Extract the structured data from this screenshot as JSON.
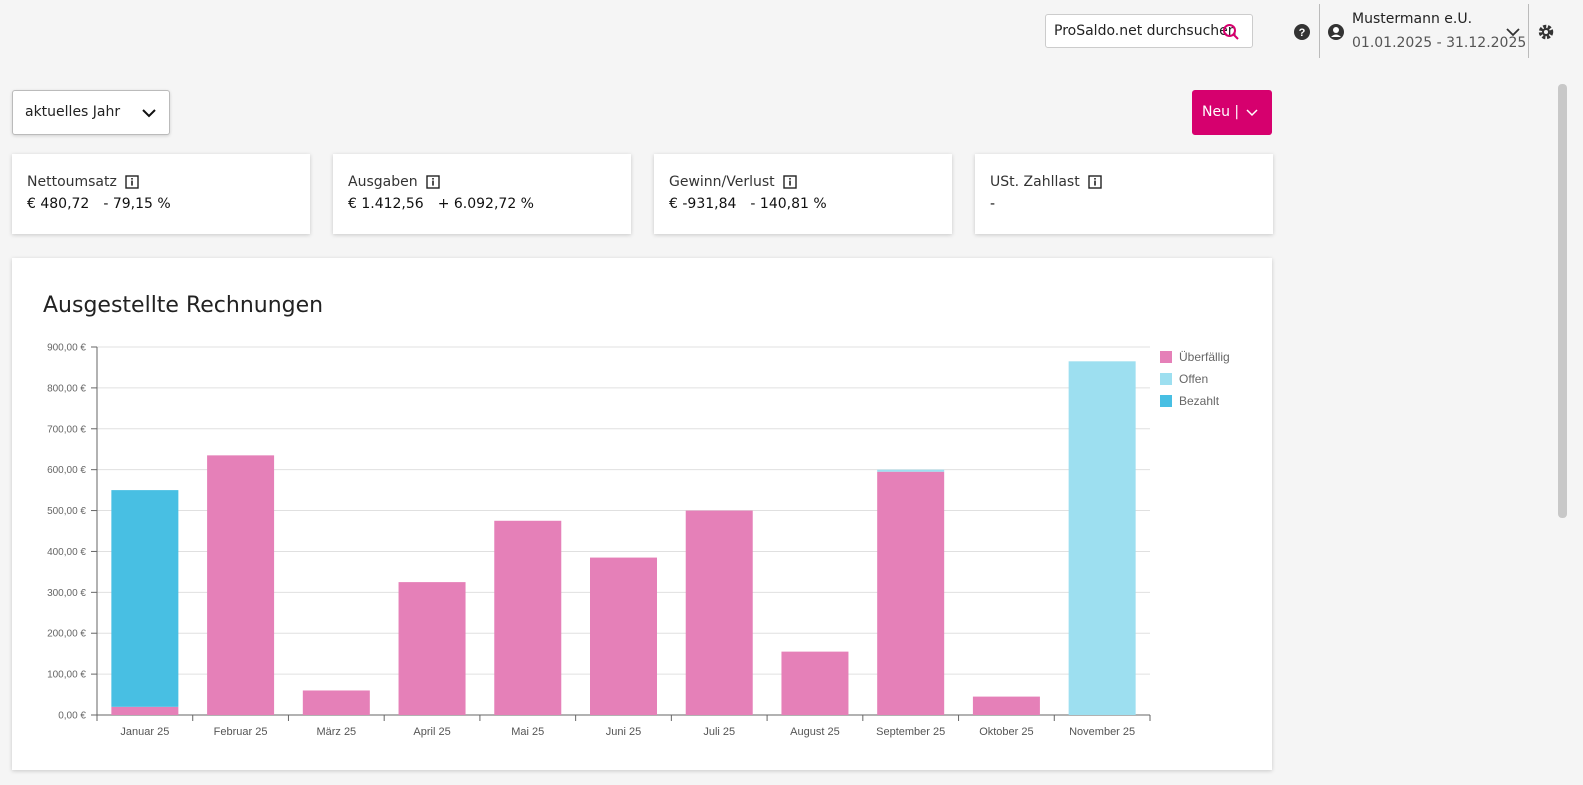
{
  "header": {
    "search_placeholder": "ProSaldo.net durchsuchen",
    "user_name": "Mustermann e.U.",
    "period": "01.01.2025 - 31.12.2025"
  },
  "controls": {
    "period_select": "aktuelles Jahr",
    "new_button": "Neu |"
  },
  "cards": [
    {
      "label": "Nettoumsatz",
      "value": "€ 480,72",
      "change": "- 79,15 %"
    },
    {
      "label": "Ausgaben",
      "value": "€ 1.412,56",
      "change": "+ 6.092,72 %"
    },
    {
      "label": "Gewinn/Verlust",
      "value": "€ -931,84",
      "change": "- 140,81 %"
    },
    {
      "label": "USt. Zahllast",
      "value": "-"
    }
  ],
  "chart_data": {
    "type": "bar",
    "stacked": true,
    "title": "Ausgestellte Rechnungen",
    "categories": [
      "Januar 25",
      "Februar 25",
      "März 25",
      "April 25",
      "Mai 25",
      "Juni 25",
      "Juli 25",
      "August 25",
      "September 25",
      "Oktober 25",
      "November 25"
    ],
    "series": [
      {
        "name": "Überfällig",
        "color": "#e580b8",
        "values": [
          20,
          635,
          60,
          325,
          475,
          385,
          500,
          155,
          595,
          45,
          0
        ]
      },
      {
        "name": "Offen",
        "color": "#9ddff0",
        "values": [
          0,
          0,
          0,
          0,
          0,
          0,
          0,
          0,
          5,
          0,
          865
        ]
      },
      {
        "name": "Bezahlt",
        "color": "#48bfe3",
        "values": [
          530,
          0,
          0,
          0,
          0,
          0,
          0,
          0,
          0,
          0,
          0
        ]
      }
    ],
    "ylim": [
      0,
      900
    ],
    "yticks": [
      {
        "value": 0,
        "label": "0,00 €"
      },
      {
        "value": 100,
        "label": "100,00 €"
      },
      {
        "value": 200,
        "label": "200,00 €"
      },
      {
        "value": 300,
        "label": "300,00 €"
      },
      {
        "value": 400,
        "label": "400,00 €"
      },
      {
        "value": 500,
        "label": "500,00 €"
      },
      {
        "value": 600,
        "label": "600,00 €"
      },
      {
        "value": 700,
        "label": "700,00 €"
      },
      {
        "value": 800,
        "label": "800,00 €"
      },
      {
        "value": 900,
        "label": "900,00 €"
      }
    ],
    "grid": true,
    "legend": "right"
  }
}
